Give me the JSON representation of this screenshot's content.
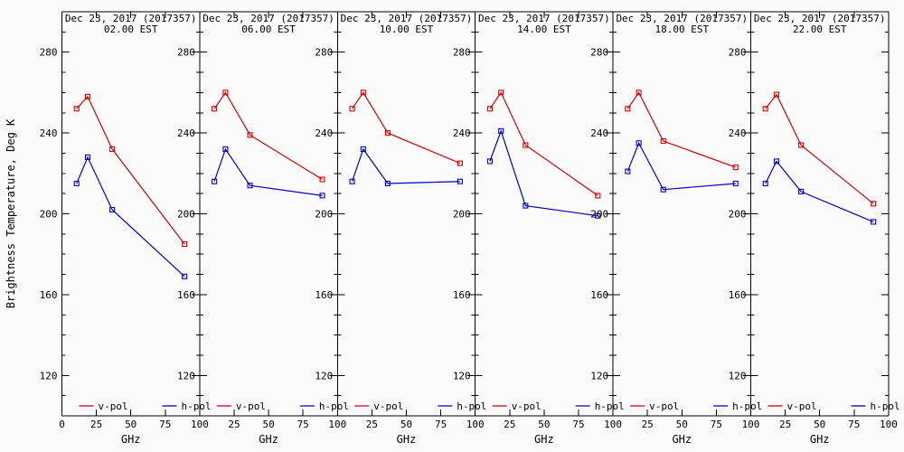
{
  "figure": {
    "background": "#fbfbfb",
    "axis_color": "#000000",
    "ylabel": "Brightness Temperature, Deg K",
    "xlabel": "GHz"
  },
  "legend": {
    "items": [
      {
        "label": "v-pol",
        "color": "#d40000"
      },
      {
        "label": "h-pol",
        "color": "#0000c8"
      }
    ],
    "position": "bottom-inside"
  },
  "chart_data": {
    "type": "line",
    "x": [
      10.65,
      18.7,
      36.5,
      89
    ],
    "xlabel": "GHz",
    "ylabel": "Brightness Temperature, Deg K",
    "xlim": [
      0,
      100
    ],
    "ylim": [
      100,
      300
    ],
    "xticks": [
      0,
      25,
      50,
      75,
      100
    ],
    "yticks": [
      120,
      160,
      200,
      240,
      280
    ],
    "y_minor_step": 10,
    "grid": false,
    "marker": "open-square",
    "panels": [
      {
        "title": "Dec 23, 2017 (2017357)",
        "subtitle": "02.00 EST",
        "series": [
          {
            "name": "v-pol",
            "color": "#d40000",
            "values": [
              252,
              258,
              232,
              185
            ]
          },
          {
            "name": "h-pol",
            "color": "#0000c8",
            "values": [
              215,
              228,
              202,
              169
            ]
          }
        ]
      },
      {
        "title": "Dec 23, 2017 (2017357)",
        "subtitle": "06.00 EST",
        "series": [
          {
            "name": "v-pol",
            "color": "#d40000",
            "values": [
              252,
              260,
              239,
              217
            ]
          },
          {
            "name": "h-pol",
            "color": "#0000c8",
            "values": [
              216,
              232,
              214,
              209
            ]
          }
        ]
      },
      {
        "title": "Dec 23, 2017 (2017357)",
        "subtitle": "10.00 EST",
        "series": [
          {
            "name": "v-pol",
            "color": "#d40000",
            "values": [
              252,
              260,
              240,
              225
            ]
          },
          {
            "name": "h-pol",
            "color": "#0000c8",
            "values": [
              216,
              232,
              215,
              216
            ]
          }
        ]
      },
      {
        "title": "Dec 23, 2017 (2017357)",
        "subtitle": "14.00 EST",
        "series": [
          {
            "name": "v-pol",
            "color": "#d40000",
            "values": [
              252,
              260,
              234,
              209
            ]
          },
          {
            "name": "h-pol",
            "color": "#0000c8",
            "values": [
              226,
              241,
              204,
              199
            ]
          }
        ]
      },
      {
        "title": "Dec 23, 2017 (2017357)",
        "subtitle": "18.00 EST",
        "series": [
          {
            "name": "v-pol",
            "color": "#d40000",
            "values": [
              252,
              260,
              236,
              223
            ]
          },
          {
            "name": "h-pol",
            "color": "#0000c8",
            "values": [
              221,
              235,
              212,
              215
            ]
          }
        ]
      },
      {
        "title": "Dec 23, 2017 (2017357)",
        "subtitle": "22.00 EST",
        "series": [
          {
            "name": "v-pol",
            "color": "#d40000",
            "values": [
              252,
              259,
              234,
              205
            ]
          },
          {
            "name": "h-pol",
            "color": "#0000c8",
            "values": [
              215,
              226,
              211,
              196
            ]
          }
        ]
      }
    ]
  }
}
